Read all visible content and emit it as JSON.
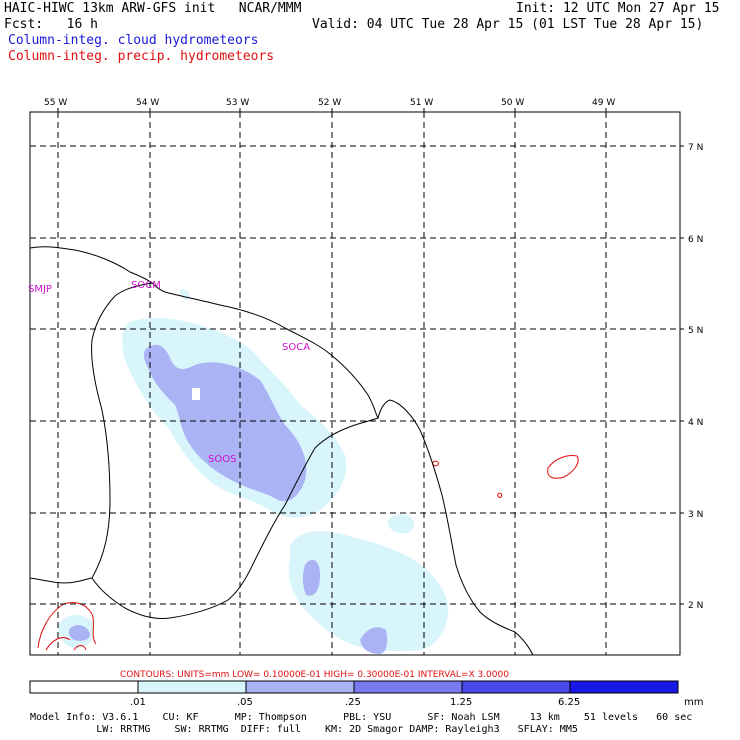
{
  "header": {
    "line1_left": "HAIC-HIWC 13km ARW-GFS init   NCAR/MMM",
    "line2_left": "Fcst:   16 h",
    "line1_right": "Init: 12 UTC Mon 27 Apr 15",
    "line2_right": "Valid: 04 UTC Tue 28 Apr 15 (01 LST Tue 28 Apr 15)",
    "legend_cloud": "Column-integ. cloud hydrometeors",
    "legend_precip": "Column-integ. precip. hydrometeors"
  },
  "map": {
    "lon_labels": [
      "55 W",
      "54 W",
      "53 W",
      "52 W",
      "51 W",
      "50 W",
      "49 W"
    ],
    "lat_labels": [
      "7 N",
      "6 N",
      "5 N",
      "4 N",
      "3 N",
      "2 N"
    ],
    "stations": [
      "SMJP",
      "SOCM",
      "SOCA",
      "SOOS"
    ],
    "colors": {
      "cloud_light": "#d7f5fb",
      "cloud_medium": "#aab4f4",
      "precip_contour": "#e01010"
    }
  },
  "colorbar": {
    "contour_info": "CONTOURS:  UNITS=mm  LOW= 0.10000E-01  HIGH= 0.30000E-01  INTERVAL=X  3.0000",
    "tick_labels": [
      ".01",
      ".05",
      ".25",
      "1.25",
      "6.25"
    ],
    "units": "mm",
    "colors": [
      "#ffffff",
      "#d7f5fb",
      "#aab4f4",
      "#7a7af0",
      "#4848e8",
      "#1818e8"
    ]
  },
  "footer": {
    "line1": "Model Info: V3.6.1    CU: KF      MP: Thompson      PBL: YSU      SF: Noah LSM     13 km    51 levels   60 sec",
    "line2": "           LW: RRTMG    SW: RRTMG  DIFF: full    KM: 2D Smagor DAMP: Rayleigh3   SFLAY: MM5"
  }
}
